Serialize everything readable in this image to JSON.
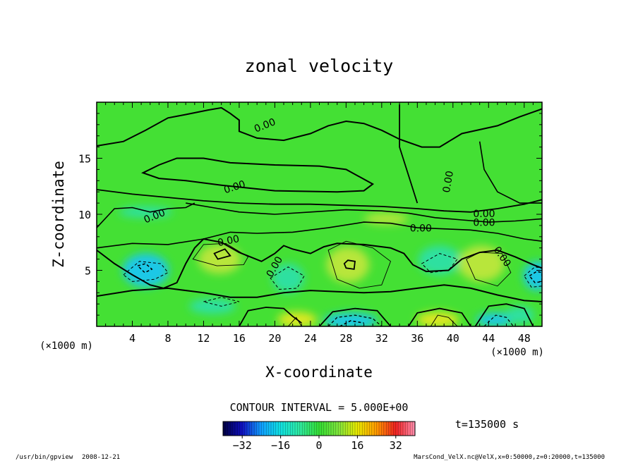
{
  "chart_data": {
    "type": "heatmap",
    "title": "zonal velocity",
    "xlabel": "X-coordinate",
    "ylabel": "Z-coordinate",
    "x_unit": "(×1000 m)",
    "y_unit": "(×1000 m)",
    "xlim": [
      0,
      50
    ],
    "ylim": [
      0,
      20
    ],
    "x_ticks": [
      4,
      8,
      12,
      16,
      20,
      24,
      28,
      32,
      36,
      40,
      44,
      48
    ],
    "y_ticks": [
      5,
      10,
      15
    ],
    "contour_interval_text": "CONTOUR INTERVAL = 5.000E+00",
    "contour_label": "0.00",
    "colorbar": {
      "range": [
        -40,
        40
      ],
      "ticks": [
        -32,
        -16,
        0,
        16,
        32
      ],
      "colormap": [
        "#000040",
        "#1010c0",
        "#10a0ff",
        "#10e0e0",
        "#30e8a0",
        "#33dd33",
        "#7de33d",
        "#e8e800",
        "#ff9900",
        "#ee2020",
        "#ff90b0"
      ]
    },
    "time_label": "t=135000 s",
    "field_colors": {
      "background": "#44e034",
      "positive": "#b8e63a",
      "strong_positive": "#dde820",
      "negative": "#2ee0a0",
      "strong_negative": "#1ec8e6"
    }
  },
  "footer": {
    "program": "/usr/bin/gpview",
    "date": "2008-12-21",
    "source": "MarsCond_VelX.nc@VelX,x=0:50000,z=0:20000,t=135000"
  }
}
